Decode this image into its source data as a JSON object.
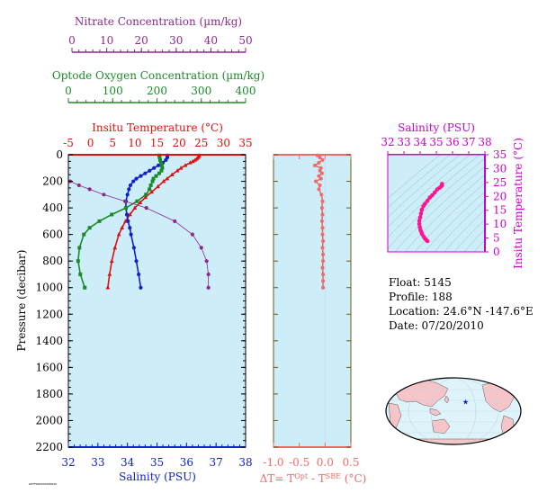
{
  "colors": {
    "nitrate": "#8b2a8b",
    "oxygen": "#1a8a2a",
    "temperature": "#dd1111",
    "salinity": "#1122cc",
    "delta_t": "#f06a6a",
    "inset_salinity": "#cc00cc",
    "inset_profile": "#ff1493",
    "panel_bg": "#cdeef8",
    "map_land": "#f7c5c8",
    "map_ocean": "#dff3fb",
    "float_marker": "#1122cc"
  },
  "info": {
    "float": "Float:  5145",
    "profile": "Profile:  188",
    "location": "Location:  24.6°N  -147.6°E",
    "date": "Date:  07/20/2010"
  },
  "tiny_text": "ZZTFDR0000000000",
  "map": {
    "marker_icon": "star-icon",
    "float_lon": -147.6,
    "float_lat": 24.6
  },
  "chart_data": [
    {
      "type": "line",
      "panel": "main-profile",
      "ylabel": "Pressure (decibar)",
      "ylim": [
        2200,
        0
      ],
      "yticks": [
        0,
        200,
        400,
        600,
        800,
        1000,
        1200,
        1400,
        1600,
        1800,
        2000,
        2200
      ],
      "axes": {
        "nitrate": {
          "label": "Nitrate Concentration (µm/kg)",
          "lim": [
            0,
            50
          ],
          "ticks": [
            0,
            10,
            20,
            30,
            40,
            50
          ]
        },
        "oxygen": {
          "label": "Optode Oxygen Concentration (µm/kg)",
          "lim": [
            0,
            400
          ],
          "ticks": [
            0,
            100,
            200,
            300,
            400
          ]
        },
        "temperature": {
          "label": "Insitu Temperature (°C)",
          "lim": [
            -5,
            35
          ],
          "ticks": [
            -5,
            0,
            5,
            10,
            15,
            20,
            25,
            30,
            35
          ]
        },
        "salinity": {
          "label": "Salinity (PSU)",
          "lim": [
            32,
            38
          ],
          "ticks": [
            32,
            33,
            34,
            35,
            36,
            37,
            38
          ]
        }
      },
      "series": [
        {
          "key": "temperature",
          "marker": "triangle",
          "pressure": [
            5,
            10,
            20,
            30,
            40,
            50,
            60,
            80,
            100,
            120,
            150,
            180,
            200,
            240,
            280,
            320,
            360,
            400,
            450,
            500,
            550,
            600,
            700,
            800,
            900,
            1000
          ],
          "values": [
            24.5,
            24.5,
            24.3,
            24.0,
            23.6,
            23.1,
            22.5,
            21.4,
            20.4,
            19.6,
            18.4,
            17.3,
            16.5,
            15.2,
            13.8,
            12.4,
            11.2,
            10.0,
            8.9,
            7.9,
            7.1,
            6.4,
            5.5,
            4.8,
            4.3,
            3.9
          ]
        },
        {
          "key": "salinity",
          "marker": "circle",
          "pressure": [
            5,
            20,
            40,
            60,
            80,
            100,
            120,
            140,
            160,
            180,
            200,
            230,
            260,
            300,
            350,
            400,
            450,
            500,
            550,
            600,
            700,
            800,
            900,
            1000
          ],
          "values": [
            35.35,
            35.35,
            35.3,
            35.2,
            35.05,
            34.9,
            34.75,
            34.6,
            34.45,
            34.3,
            34.2,
            34.1,
            34.05,
            34.0,
            33.95,
            33.95,
            33.98,
            34.02,
            34.08,
            34.12,
            34.22,
            34.3,
            34.38,
            34.45
          ]
        },
        {
          "key": "oxygen",
          "marker": "square",
          "pressure": [
            5,
            20,
            40,
            60,
            80,
            100,
            120,
            140,
            160,
            180,
            200,
            230,
            260,
            300,
            350,
            400,
            450,
            500,
            550,
            600,
            700,
            800,
            900,
            1000
          ],
          "values": [
            205,
            206,
            207,
            209,
            211,
            212,
            210,
            205,
            198,
            192,
            190,
            186,
            183,
            175,
            155,
            130,
            98,
            70,
            48,
            35,
            25,
            22,
            27,
            37
          ]
        },
        {
          "key": "nitrate",
          "marker": "circle",
          "pressure": [
            200,
            230,
            260,
            300,
            350,
            400,
            500,
            600,
            700,
            800,
            900,
            1000
          ],
          "values": [
            0.5,
            3,
            6,
            10,
            16,
            22,
            30,
            35,
            37.5,
            39,
            39.5,
            39.5
          ]
        }
      ]
    },
    {
      "type": "line",
      "panel": "delta-t",
      "xlabel": "ΔT= T^Opt - T^SBE (°C)",
      "xlim": [
        -1.0,
        0.5
      ],
      "xticks": [
        -1.0,
        -0.5,
        0.0,
        0.5
      ],
      "ylim": [
        2200,
        0
      ],
      "series": [
        {
          "pressure": [
            5,
            20,
            40,
            60,
            80,
            100,
            120,
            140,
            160,
            180,
            200,
            230,
            260,
            300,
            350,
            400,
            450,
            500,
            550,
            600,
            650,
            700,
            750,
            800,
            850,
            900,
            950,
            1000
          ],
          "values": [
            -0.15,
            -0.1,
            -0.05,
            -0.12,
            -0.2,
            -0.08,
            -0.1,
            -0.06,
            -0.12,
            -0.08,
            -0.18,
            -0.1,
            -0.12,
            -0.07,
            -0.05,
            -0.06,
            -0.05,
            -0.06,
            -0.05,
            -0.05,
            -0.04,
            -0.05,
            -0.04,
            -0.04,
            -0.05,
            -0.04,
            -0.04,
            -0.04
          ]
        }
      ]
    },
    {
      "type": "scatter",
      "panel": "ts-inset",
      "xlabel": "Salinity (PSU)",
      "ylabel": "Insitu Temperature (°C)",
      "xlim": [
        32,
        38
      ],
      "ylim": [
        0,
        35
      ],
      "xticks": [
        32,
        33,
        34,
        35,
        36,
        37,
        38
      ],
      "yticks": [
        0,
        5,
        10,
        15,
        20,
        25,
        30,
        35
      ],
      "series": [
        {
          "salinity": [
            34.45,
            34.38,
            34.3,
            34.22,
            34.12,
            34.08,
            34.02,
            33.98,
            33.95,
            33.95,
            34.0,
            34.05,
            34.1,
            34.2,
            34.3,
            34.45,
            34.6,
            34.75,
            34.9,
            35.05,
            35.2,
            35.3,
            35.35,
            35.35
          ],
          "temperature": [
            3.9,
            4.3,
            4.8,
            5.5,
            6.4,
            7.1,
            7.9,
            8.9,
            10.0,
            11.2,
            12.4,
            13.8,
            15.2,
            16.5,
            17.3,
            18.4,
            19.6,
            20.4,
            21.4,
            22.5,
            23.1,
            23.6,
            24.0,
            24.5
          ]
        }
      ]
    }
  ]
}
